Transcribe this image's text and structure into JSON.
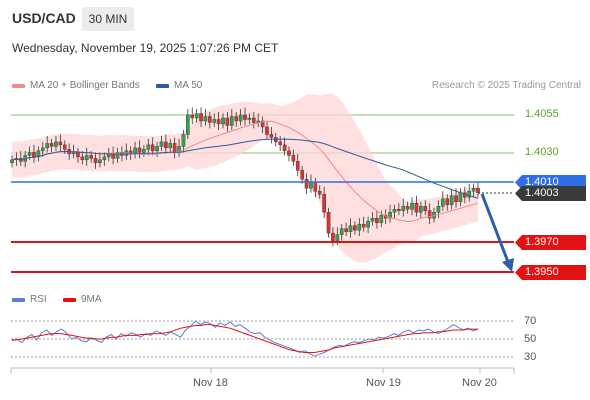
{
  "header": {
    "symbol": "USD/CAD",
    "timeframe": "30 MIN",
    "datetime": "Wednesday, November 19, 2025 1:07:26 PM CET"
  },
  "legend": {
    "ma20_label": "MA 20 + Bollinger Bands",
    "ma50_label": "MA 50",
    "copyright": "Research © 2025 Trading Central",
    "colors": {
      "ma20": "#f08a8a",
      "ma50": "#2e5aa0",
      "bands": "#ffd6d6"
    }
  },
  "levels": {
    "resistance_2": "1.4055",
    "resistance_1": "1.4030",
    "current_price": "1.4010",
    "last_close": "1.4003",
    "support_1": "1.3970",
    "support_2": "1.3950",
    "colors": {
      "resistance": "#8ec36a",
      "current": "#2e6ee8",
      "support": "#e21212",
      "arrow": "#2a5ea8"
    }
  },
  "rsi": {
    "rsi_label": "RSI",
    "ma_label": "9MA",
    "levels": [
      "70",
      "50",
      "30"
    ],
    "colors": {
      "rsi": "#5b7fd6",
      "ma": "#e21212"
    }
  },
  "x_axis": {
    "labels": [
      "Nov 18",
      "Nov 19",
      "Nov 20"
    ]
  },
  "chart_data": {
    "type": "candlestick",
    "description_ylim": [
      1.395,
      1.407
    ],
    "prices": [
      1.4025,
      1.4026,
      1.4024,
      1.4028,
      1.403,
      1.4027,
      1.4031,
      1.4033,
      1.4036,
      1.4034,
      1.4037,
      1.4035,
      1.4032,
      1.4029,
      1.403,
      1.4027,
      1.4025,
      1.4028,
      1.4026,
      1.4023,
      1.4025,
      1.4027,
      1.4029,
      1.4026,
      1.403,
      1.4028,
      1.4031,
      1.4029,
      1.4033,
      1.403,
      1.4032,
      1.4035,
      1.4031,
      1.4034,
      1.4037,
      1.4033,
      1.4036,
      1.403,
      1.4034,
      1.4042,
      1.4055,
      1.4053,
      1.4056,
      1.4051,
      1.4054,
      1.405,
      1.4052,
      1.4049,
      1.4053,
      1.4048,
      1.4054,
      1.4051,
      1.4055,
      1.4052,
      1.4053,
      1.405,
      1.4051,
      1.4047,
      1.4042,
      1.404,
      1.4037,
      1.4035,
      1.4031,
      1.4028,
      1.4024,
      1.4018,
      1.4012,
      1.4006,
      1.401,
      1.4004,
      1.4002,
      1.399,
      1.3976,
      1.3971,
      1.3975,
      1.3979,
      1.3977,
      1.3981,
      1.3978,
      1.3982,
      1.398,
      1.3984,
      1.3986,
      1.3983,
      1.3988,
      1.3986,
      1.399,
      1.3992,
      1.3991,
      1.3994,
      1.3992,
      1.3996,
      1.399,
      1.3994,
      1.3991,
      1.3986,
      1.399,
      1.3994,
      1.3999,
      1.3995,
      1.4001,
      1.3997,
      1.4003,
      1.4,
      1.4004,
      1.4006,
      1.4003
    ],
    "rsi": [
      48,
      50,
      46,
      52,
      55,
      49,
      57,
      60,
      54,
      58,
      61,
      57,
      50,
      52,
      48,
      47,
      51,
      49,
      46,
      52,
      55,
      50,
      56,
      53,
      57,
      55,
      52,
      56,
      54,
      59,
      57,
      54,
      58,
      55,
      52,
      60,
      64,
      70,
      66,
      69,
      67,
      63,
      68,
      65,
      69,
      64,
      66,
      62,
      58,
      56,
      57,
      52,
      49,
      46,
      44,
      42,
      40,
      38,
      35,
      37,
      34,
      31,
      33,
      35,
      38,
      41,
      43,
      42,
      45,
      47,
      46,
      48,
      50,
      49,
      52,
      51,
      53,
      56,
      54,
      58,
      60,
      57,
      60,
      59,
      61,
      58,
      56,
      59,
      62,
      66,
      63,
      60,
      62,
      59,
      61
    ],
    "rsi_ma": [
      49,
      49,
      50,
      51,
      52,
      53,
      54,
      55,
      56,
      56,
      56,
      55,
      54,
      53,
      52,
      51,
      51,
      50,
      50,
      51,
      52,
      52,
      53,
      54,
      54,
      54,
      55,
      55,
      56,
      56,
      56,
      57,
      58,
      60,
      62,
      63,
      64,
      65,
      65,
      66,
      66,
      65,
      64,
      63,
      62,
      60,
      58,
      56,
      54,
      52,
      50,
      48,
      46,
      44,
      42,
      40,
      38,
      37,
      36,
      35,
      35,
      35,
      36,
      37,
      38,
      40,
      41,
      42,
      43,
      44,
      45,
      46,
      47,
      48,
      49,
      50,
      51,
      52,
      53,
      54,
      55,
      56,
      56,
      57,
      57,
      57,
      58,
      58,
      59,
      60,
      60,
      60,
      61,
      61,
      61
    ]
  }
}
